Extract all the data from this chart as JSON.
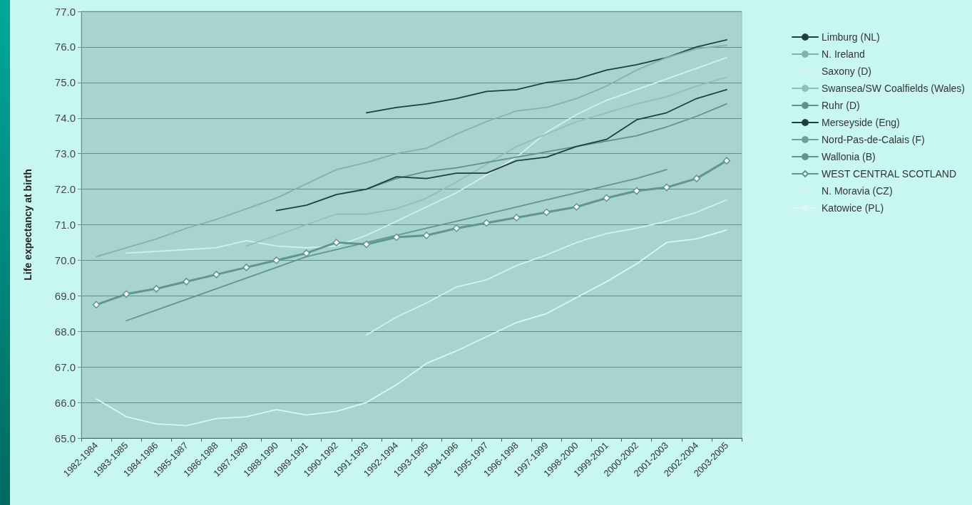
{
  "chart_data": {
    "type": "line",
    "ylabel": "Life expectancy at birth",
    "categories": [
      "1982-1984",
      "1983-1985",
      "1984-1986",
      "1985-1987",
      "1986-1988",
      "1987-1989",
      "1988-1990",
      "1989-1991",
      "1990-1992",
      "1991-1993",
      "1992-1994",
      "1993-1995",
      "1994-1996",
      "1995-1997",
      "1996-1998",
      "1997-1999",
      "1998-2000",
      "1999-2001",
      "2000-2002",
      "2001-2003",
      "2002-2004",
      "2003-2005"
    ],
    "series": [
      {
        "name": "Limburg (NL)",
        "color": "#1f3f3a",
        "marker": "none",
        "values": [
          null,
          null,
          null,
          null,
          null,
          null,
          null,
          null,
          null,
          74.15,
          74.3,
          74.4,
          74.55,
          74.75,
          74.8,
          75.0,
          75.1,
          75.35,
          75.5,
          75.7,
          76.0,
          76.2
        ]
      },
      {
        "name": "N. Ireland",
        "color": "#7fb3ac",
        "marker": "none",
        "values": [
          70.1,
          70.35,
          70.6,
          70.9,
          71.15,
          71.45,
          71.75,
          72.15,
          72.55,
          72.75,
          73.0,
          73.15,
          73.55,
          73.9,
          74.2,
          74.3,
          74.55,
          74.9,
          75.35,
          75.7,
          75.95,
          76.05
        ]
      },
      {
        "name": "Saxony (D)",
        "color": "#d4f0ec",
        "marker": "none",
        "values": [
          null,
          70.2,
          70.25,
          70.3,
          70.35,
          70.55,
          70.4,
          70.35,
          70.4,
          70.7,
          71.1,
          71.5,
          71.9,
          72.4,
          72.9,
          73.6,
          74.1,
          74.5,
          74.8,
          75.1,
          75.4,
          75.7
        ]
      },
      {
        "name": "Swansea/SW Coalfields (Wales)",
        "color": "#8fc0b8",
        "marker": "none",
        "values": [
          null,
          null,
          null,
          null,
          null,
          70.4,
          70.7,
          71.0,
          71.3,
          71.3,
          71.45,
          71.75,
          72.2,
          72.7,
          73.2,
          73.55,
          73.9,
          74.15,
          74.4,
          74.6,
          74.9,
          75.15
        ]
      },
      {
        "name": "Ruhr (D)",
        "color": "#5e938c",
        "marker": "none",
        "values": [
          null,
          null,
          null,
          null,
          null,
          null,
          null,
          null,
          null,
          72.0,
          72.3,
          72.5,
          72.6,
          72.75,
          72.9,
          73.05,
          73.2,
          73.35,
          73.5,
          73.75,
          74.05,
          74.4
        ]
      },
      {
        "name": "Merseyside (Eng)",
        "color": "#1f3f3a",
        "marker": "none",
        "values": [
          null,
          null,
          null,
          null,
          null,
          null,
          71.4,
          71.55,
          71.85,
          72.0,
          72.35,
          72.3,
          72.45,
          72.45,
          72.8,
          72.9,
          73.2,
          73.4,
          73.95,
          74.15,
          74.55,
          74.8
        ]
      },
      {
        "name": "Nord-Pas-de-Calais (F)",
        "color": "#6f9f99",
        "marker": "none",
        "values": [
          null,
          null,
          null,
          null,
          null,
          null,
          null,
          null,
          null,
          null,
          null,
          null,
          null,
          null,
          null,
          null,
          null,
          null,
          null,
          null,
          null,
          null
        ]
      },
      {
        "name": "Wallonia (B)",
        "color": "#5f9690",
        "marker": "none",
        "values": [
          null,
          68.3,
          68.6,
          68.9,
          69.2,
          69.5,
          69.8,
          70.1,
          70.3,
          70.5,
          70.7,
          70.9,
          71.1,
          71.3,
          71.5,
          71.7,
          71.9,
          72.1,
          72.3,
          72.55,
          null,
          null
        ]
      },
      {
        "name": "WEST CENTRAL SCOTLAND",
        "color": "#5f9690",
        "marker": "diamond",
        "values": [
          68.75,
          69.05,
          69.2,
          69.4,
          69.6,
          69.8,
          70.0,
          70.2,
          70.5,
          70.45,
          70.65,
          70.7,
          70.9,
          71.05,
          71.2,
          71.35,
          71.5,
          71.75,
          71.95,
          72.05,
          72.3,
          72.8
        ]
      },
      {
        "name": "N. Moravia (CZ)",
        "color": "#d2f2ed",
        "marker": "none",
        "values": [
          null,
          null,
          null,
          null,
          null,
          null,
          null,
          null,
          null,
          67.9,
          68.4,
          68.8,
          69.25,
          69.45,
          69.85,
          70.15,
          70.5,
          70.75,
          70.9,
          71.1,
          71.35,
          71.7
        ]
      },
      {
        "name": "Katowice (PL)",
        "color": "#dcf6f2",
        "marker": "none",
        "values": [
          66.1,
          65.6,
          65.4,
          65.35,
          65.55,
          65.6,
          65.8,
          65.65,
          65.75,
          66.0,
          66.5,
          67.1,
          67.45,
          67.85,
          68.25,
          68.5,
          68.95,
          69.4,
          69.9,
          70.5,
          70.6,
          70.85
        ]
      }
    ],
    "ylim": [
      65,
      77
    ],
    "yticks": [
      {
        "value": 65,
        "label": "65.0"
      },
      {
        "value": 66,
        "label": "66.0"
      },
      {
        "value": 67,
        "label": "67.0"
      },
      {
        "value": 68,
        "label": "68.0"
      },
      {
        "value": 69,
        "label": "69.0"
      },
      {
        "value": 70,
        "label": "70.0"
      },
      {
        "value": 71,
        "label": "71.0"
      },
      {
        "value": 72,
        "label": "72.0"
      },
      {
        "value": 73,
        "label": "73.0"
      },
      {
        "value": 74,
        "label": "74.0"
      },
      {
        "value": 75,
        "label": "75.0"
      },
      {
        "value": 76,
        "label": "76.0"
      },
      {
        "value": 77,
        "label": "77.0"
      }
    ],
    "grid": "y",
    "legend": "right"
  }
}
